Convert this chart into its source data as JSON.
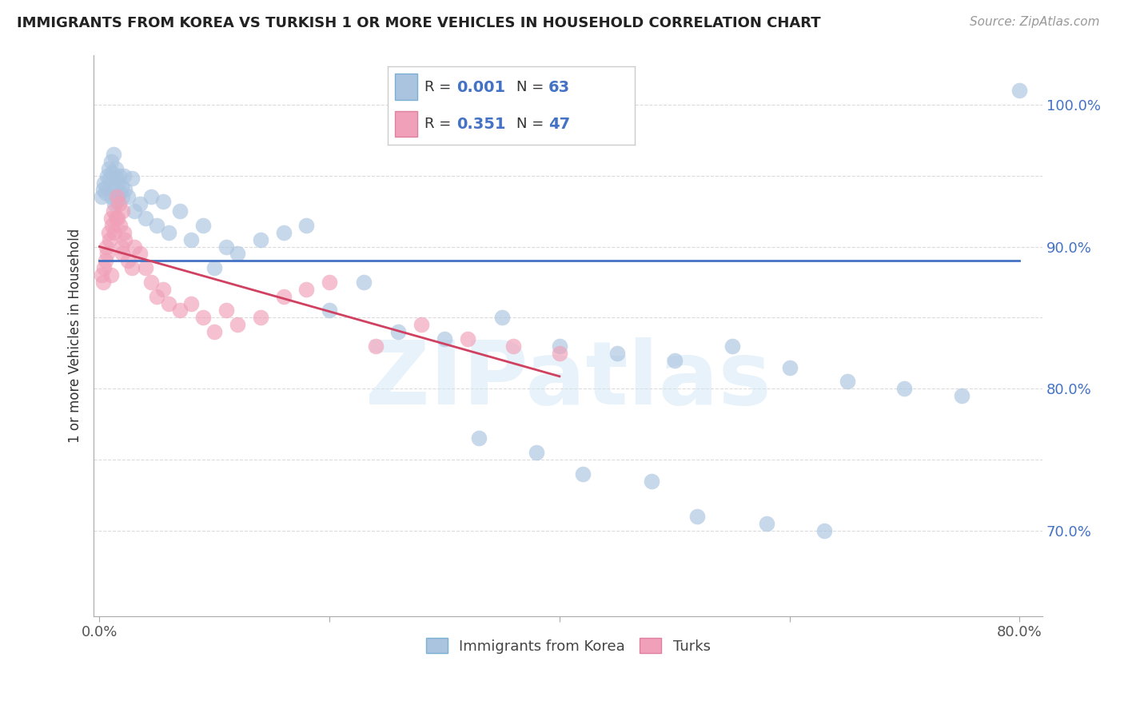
{
  "title": "IMMIGRANTS FROM KOREA VS TURKISH 1 OR MORE VEHICLES IN HOUSEHOLD CORRELATION CHART",
  "source": "Source: ZipAtlas.com",
  "ylabel": "1 or more Vehicles in Household",
  "watermark": "ZIPatlas",
  "korea_R": "0.001",
  "korea_N": "63",
  "turk_R": "0.351",
  "turk_N": "47",
  "korea_color": "#aac4e0",
  "turk_color": "#f0a0b8",
  "korea_line_color": "#4472c4",
  "turk_line_color": "#d04060",
  "background_color": "#ffffff",
  "korea_x": [
    0.2,
    0.3,
    0.4,
    0.5,
    0.6,
    0.7,
    0.8,
    0.9,
    1.0,
    1.0,
    1.1,
    1.2,
    1.2,
    1.3,
    1.4,
    1.5,
    1.5,
    1.6,
    1.7,
    1.8,
    1.9,
    2.0,
    2.1,
    2.2,
    2.5,
    2.8,
    3.0,
    3.5,
    4.0,
    4.5,
    5.0,
    5.5,
    6.0,
    7.0,
    8.0,
    9.0,
    10.0,
    11.0,
    12.0,
    14.0,
    16.0,
    18.0,
    20.0,
    23.0,
    26.0,
    30.0,
    35.0,
    40.0,
    45.0,
    50.0,
    55.0,
    60.0,
    65.0,
    70.0,
    75.0,
    80.0,
    33.0,
    38.0,
    42.0,
    48.0,
    52.0,
    58.0,
    63.0
  ],
  "korea_y": [
    93.5,
    94.0,
    94.5,
    93.8,
    94.2,
    95.0,
    95.5,
    94.8,
    96.0,
    93.5,
    95.2,
    94.0,
    96.5,
    93.0,
    95.5,
    94.8,
    93.2,
    94.5,
    95.0,
    93.8,
    94.2,
    93.5,
    95.0,
    94.0,
    93.5,
    94.8,
    92.5,
    93.0,
    92.0,
    93.5,
    91.5,
    93.2,
    91.0,
    92.5,
    90.5,
    91.5,
    88.5,
    90.0,
    89.5,
    90.5,
    91.0,
    91.5,
    85.5,
    87.5,
    84.0,
    83.5,
    85.0,
    83.0,
    82.5,
    82.0,
    83.0,
    81.5,
    80.5,
    80.0,
    79.5,
    101.0,
    76.5,
    75.5,
    74.0,
    73.5,
    71.0,
    70.5,
    70.0
  ],
  "turk_x": [
    0.2,
    0.3,
    0.4,
    0.5,
    0.6,
    0.7,
    0.8,
    0.9,
    1.0,
    1.0,
    1.1,
    1.2,
    1.3,
    1.4,
    1.5,
    1.6,
    1.7,
    1.8,
    1.9,
    2.0,
    2.0,
    2.1,
    2.2,
    2.5,
    2.8,
    3.0,
    3.5,
    4.0,
    4.5,
    5.0,
    5.5,
    6.0,
    7.0,
    8.0,
    9.0,
    10.0,
    11.0,
    12.0,
    14.0,
    16.0,
    18.0,
    20.0,
    24.0,
    28.0,
    32.0,
    36.0,
    40.0
  ],
  "turk_y": [
    88.0,
    87.5,
    88.5,
    89.0,
    90.0,
    89.5,
    91.0,
    90.5,
    92.0,
    88.0,
    91.5,
    92.5,
    91.0,
    92.0,
    93.5,
    92.0,
    93.0,
    91.5,
    90.0,
    92.5,
    89.5,
    91.0,
    90.5,
    89.0,
    88.5,
    90.0,
    89.5,
    88.5,
    87.5,
    86.5,
    87.0,
    86.0,
    85.5,
    86.0,
    85.0,
    84.0,
    85.5,
    84.5,
    85.0,
    86.5,
    87.0,
    87.5,
    83.0,
    84.5,
    83.5,
    83.0,
    82.5
  ]
}
